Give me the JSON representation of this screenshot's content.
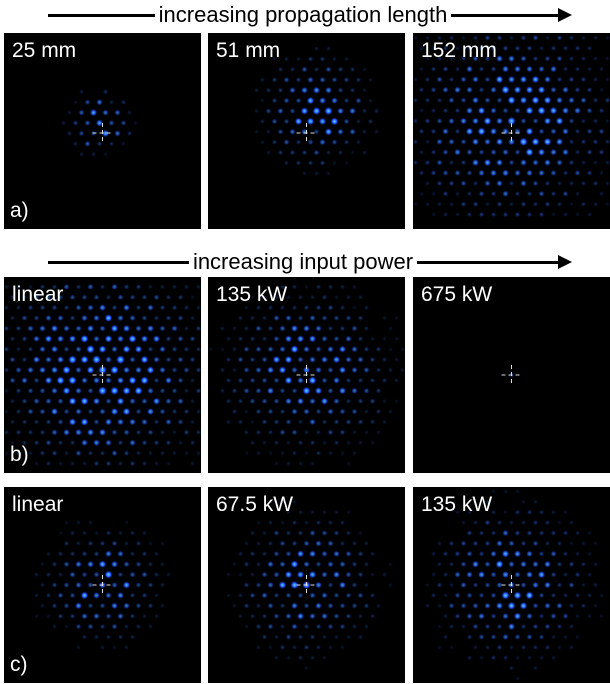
{
  "rows": [
    {
      "caption": "increasing propagation length",
      "label": "a)",
      "panels": [
        {
          "label": "25 mm"
        },
        {
          "label": "51 mm"
        },
        {
          "label": "152 mm"
        }
      ]
    },
    {
      "caption": "increasing input power",
      "label": "b)",
      "panels": [
        {
          "label": "linear"
        },
        {
          "label": "135 kW"
        },
        {
          "label": "675 kW"
        }
      ]
    },
    {
      "label": "c)",
      "panels": [
        {
          "label": "linear"
        },
        {
          "label": "67.5 kW"
        },
        {
          "label": "135 kW"
        }
      ]
    }
  ]
}
